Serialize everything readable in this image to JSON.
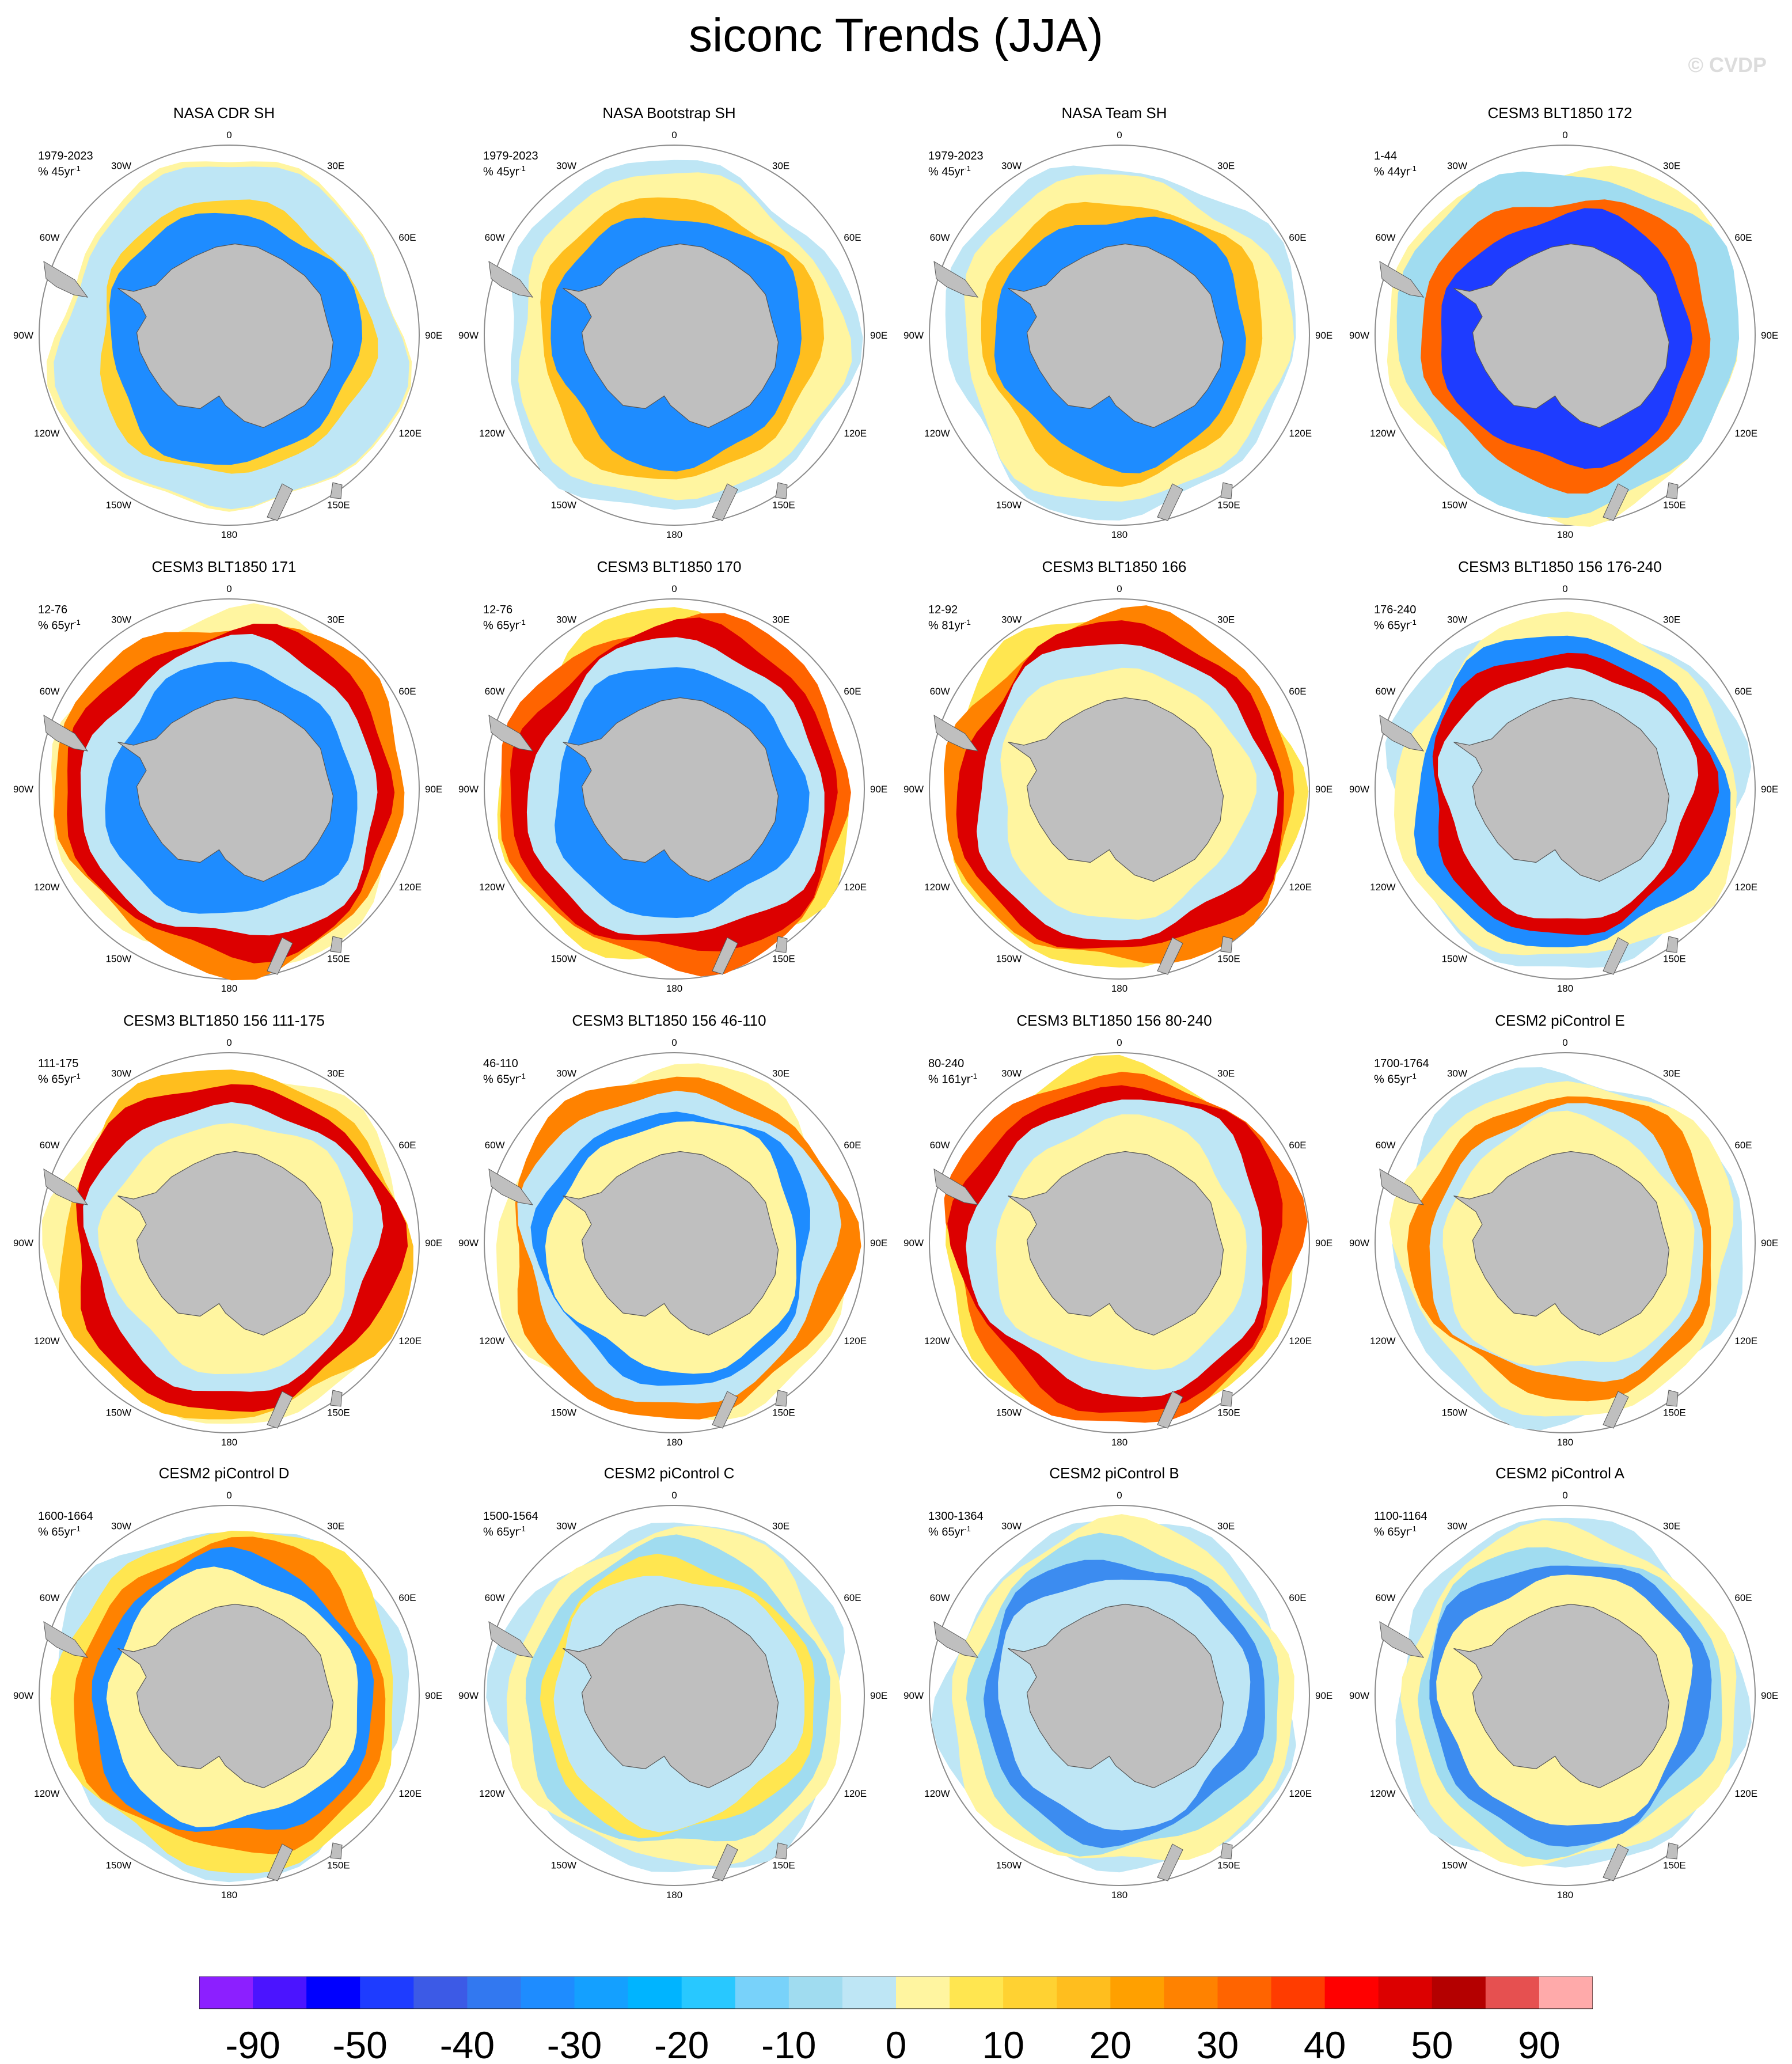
{
  "title": "siconc Trends (JJA)",
  "watermark": "© CVDP",
  "units_template": "%",
  "colors": {
    "land": "#bfbfbf",
    "ring": "#8c8c8c",
    "levels": [
      "#8c1fff",
      "#4b14ff",
      "#0000ff",
      "#1e3cff",
      "#3c5ae6",
      "#3278f0",
      "#1e8cff",
      "#14a0ff",
      "#00b4ff",
      "#28c8ff",
      "#78d2fa",
      "#a0dcf0",
      "#bee6f5",
      "#fff5a0",
      "#ffe650",
      "#ffd232",
      "#ffbe1e",
      "#ffa000",
      "#ff8200",
      "#ff6400",
      "#ff3c00",
      "#ff0000",
      "#dc0000",
      "#b40000",
      "#e65050",
      "#ffaaaa"
    ]
  },
  "colorbar": {
    "labels": [
      "-90",
      "-50",
      "-40",
      "-30",
      "-20",
      "-10",
      "0",
      "10",
      "20",
      "30",
      "40",
      "50",
      "90"
    ]
  },
  "map_labels": {
    "top": "0",
    "bottom": "180",
    "right": [
      "30E",
      "60E",
      "90E",
      "120E",
      "150E"
    ],
    "left": [
      "30W",
      "60W",
      "90W",
      "120W",
      "150W"
    ]
  },
  "chart_data": {
    "type": "heatmap",
    "projection": "polar-stereographic, Southern Hemisphere",
    "variable": "siconc",
    "season": "JJA",
    "units": "% per trend period",
    "colorbar_levels": [
      -90,
      -50,
      -40,
      -30,
      -20,
      -10,
      0,
      10,
      20,
      30,
      40,
      50,
      90
    ],
    "panels": [
      {
        "title": "NASA CDR SH",
        "period": "1979-2023",
        "units": "45yr",
        "dominant_trend": "mixed: increase Ross/Amundsen and E. Weddell, decrease Bellingshausen and E. Antarctic"
      },
      {
        "title": "NASA Bootstrap SH",
        "period": "1979-2023",
        "units": "45yr",
        "dominant_trend": "mixed: similar to NASA CDR, weaker"
      },
      {
        "title": "NASA Team SH",
        "period": "1979-2023",
        "units": "45yr",
        "dominant_trend": "mixed: similar to NASA CDR"
      },
      {
        "title": "CESM3 BLT1850 172",
        "period": "1-44",
        "units": "44yr",
        "dominant_trend": "mixed: decrease Weddell/Atlantic edge, increase Ross"
      },
      {
        "title": "CESM3 BLT1850 171",
        "period": "12-76",
        "units": "65yr",
        "dominant_trend": "strong increase along western ice edge"
      },
      {
        "title": "CESM3 BLT1850 170",
        "period": "12-76",
        "units": "65yr",
        "dominant_trend": "strong increase along most of ice edge"
      },
      {
        "title": "CESM3 BLT1850 166",
        "period": "12-92",
        "units": "81yr",
        "dominant_trend": "strong increase western and Ross sectors"
      },
      {
        "title": "CESM3 BLT1850 156 176-240",
        "period": "176-240",
        "units": "65yr",
        "dominant_trend": "decrease Atlantic/Ross, increase Indian-Pacific"
      },
      {
        "title": "CESM3 BLT1850 156 111-175",
        "period": "111-175",
        "units": "65yr",
        "dominant_trend": "strong increase western and Ross sectors"
      },
      {
        "title": "CESM3 BLT1850 156 46-110",
        "period": "46-110",
        "units": "65yr",
        "dominant_trend": "increase Atlantic, decrease Weddell/Pacific"
      },
      {
        "title": "CESM3 BLT1850 156 80-240",
        "period": "80-240",
        "units": "161yr",
        "dominant_trend": "strong increase along western and Atlantic edge"
      },
      {
        "title": "CESM2 piControl E",
        "period": "1700-1764",
        "units": "65yr",
        "dominant_trend": "weak increase, Atlantic-Indian"
      },
      {
        "title": "CESM2 piControl D",
        "period": "1600-1664",
        "units": "65yr",
        "dominant_trend": "increase Atlantic, decrease Pacific"
      },
      {
        "title": "CESM2 piControl C",
        "period": "1500-1564",
        "units": "65yr",
        "dominant_trend": "weak mixed"
      },
      {
        "title": "CESM2 piControl B",
        "period": "1300-1364",
        "units": "65yr",
        "dominant_trend": "weak decrease"
      },
      {
        "title": "CESM2 piControl A",
        "period": "1100-1164",
        "units": "65yr",
        "dominant_trend": "weak decrease"
      }
    ]
  }
}
